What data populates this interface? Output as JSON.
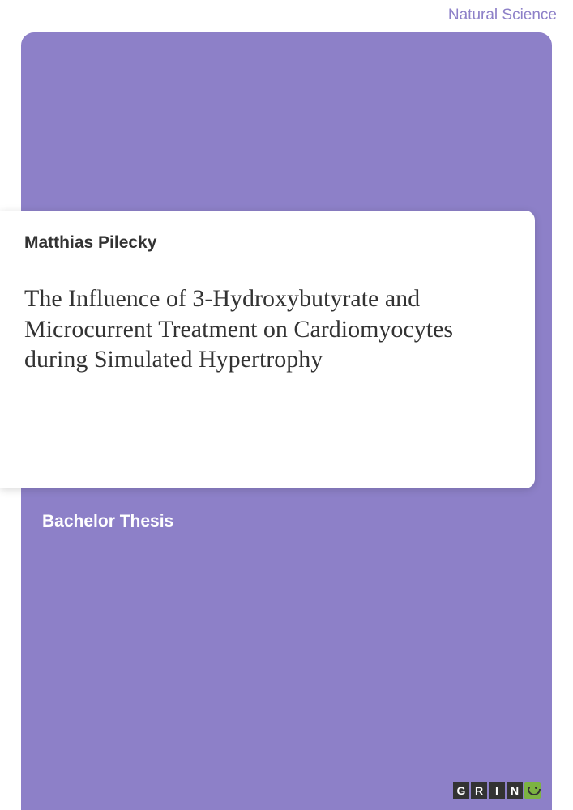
{
  "cover": {
    "category": "Natural Science",
    "author": "Matthias Pilecky",
    "title": "The Influence of 3-Hydroxybutyrate and Microcurrent Treatment on Cardiomyocytes during Simulated Hypertrophy",
    "thesis_type": "Bachelor Thesis",
    "publisher_letters": [
      "G",
      "R",
      "I",
      "N"
    ]
  },
  "colors": {
    "background_purple": "#8d80c8",
    "card_white": "#ffffff",
    "text_dark": "#333333",
    "category_text": "#8d80c8",
    "logo_green": "#7cb342"
  },
  "typography": {
    "category_fontsize": 19,
    "author_fontsize": 21,
    "title_fontsize": 30,
    "thesis_type_fontsize": 21,
    "title_font": "Georgia",
    "label_font": "Arial"
  }
}
